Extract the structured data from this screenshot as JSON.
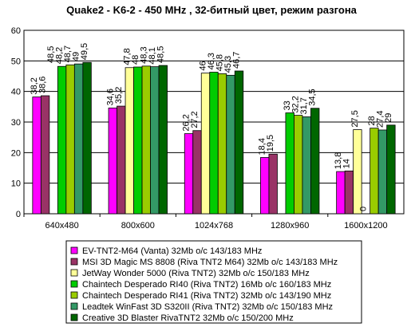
{
  "chart_data": {
    "type": "bar",
    "title": "Quake2 - K6-2 - 450 MHz ,  32-битный цвет, режим разгона",
    "xlabel": "",
    "ylabel": "",
    "ylim": [
      0,
      60
    ],
    "yticks": [
      0,
      10,
      20,
      30,
      40,
      50,
      60
    ],
    "grid": true,
    "legend_position": "bottom",
    "categories": [
      "640x480",
      "800x600",
      "1024x768",
      "1280x960",
      "1600x1200"
    ],
    "series": [
      {
        "name": "EV-TNT2-M64 (Vanta) 32Mb o/c 143/183 MHz",
        "color": "#ff00ff",
        "values": [
          38.2,
          34.6,
          26.2,
          18.4,
          13.8
        ],
        "labels": [
          "38,2",
          "34,6",
          "26,2",
          "18,4",
          "13,8"
        ]
      },
      {
        "name": "MSI 3D Magic MS 8808 (Riva TNT2 M64) 32Mb o/c 143/183 MHz",
        "color": "#993366",
        "values": [
          38.6,
          35.2,
          27.2,
          19.5,
          14
        ],
        "labels": [
          "38,6",
          "35,2",
          "27,2",
          "19,5",
          "14"
        ]
      },
      {
        "name": "JetWay Wonder 5000 (Riva TNT2) 32Mb o/c 150/183 MHz",
        "color": "#ffff99",
        "values": [
          null,
          47.8,
          46,
          null,
          27.5
        ],
        "labels": [
          null,
          "47,8",
          "46",
          null,
          "27,5"
        ]
      },
      {
        "name": "Chaintech Desperado RI40 (Riva TNT2) 16Mb o/c 160/183 MHz",
        "color": "#00cc00",
        "values": [
          48.2,
          48,
          46.3,
          33,
          0
        ],
        "labels": [
          "48,2",
          "48",
          "46,3",
          "33",
          "0"
        ]
      },
      {
        "name": "Chaintech Desperado RI41 (Riva TNT2) 32Mb o/c 143/190 MHz",
        "color": "#99cc00",
        "values": [
          48.7,
          48.3,
          45.8,
          32.2,
          28
        ],
        "labels": [
          "48,7",
          "48,3",
          "45,8",
          "32,2",
          "28"
        ]
      },
      {
        "name": "Leadtek WinFast 3D S320II (Riva TNT2) 32Mb o/c 150/183 MHz",
        "color": "#339966",
        "values": [
          49,
          48.1,
          45.3,
          31.7,
          27.4
        ],
        "labels": [
          "49",
          "48,1",
          "45,3",
          "31,7",
          "27,4"
        ]
      },
      {
        "name": "Creative 3D Blaster RivaTNT2 32Mb o/c 150/200 MHz",
        "color": "#006600",
        "values": [
          49.5,
          48.5,
          46.7,
          34.5,
          29
        ],
        "labels": [
          "49,5",
          "48,5",
          "46,7",
          "34,5",
          "29"
        ]
      }
    ],
    "extra_labels": [
      {
        "series": 2,
        "category": 0,
        "text": "48,5"
      }
    ]
  }
}
